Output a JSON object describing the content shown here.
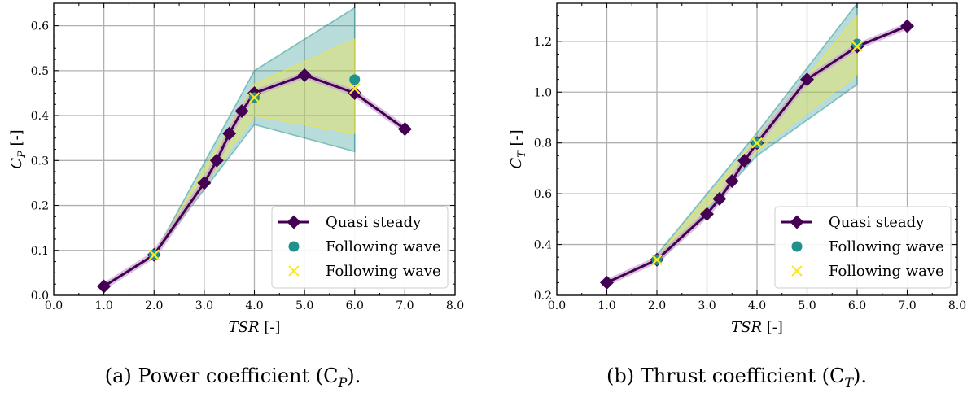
{
  "chart_data": [
    {
      "type": "line",
      "caption": "(a) Power coefficient (C",
      "caption_sub": "P",
      "caption_end": ").",
      "xlabel": "TSR",
      "xlabel_unit": "[-]",
      "ylabel": "C",
      "ylabel_sub": "P",
      "ylabel_unit": "[-]",
      "xlim": [
        0,
        8
      ],
      "ylim": [
        0,
        0.65
      ],
      "xticks": [
        0,
        1,
        2,
        3,
        4,
        5,
        6,
        7,
        8
      ],
      "xtick_labels": [
        "0.0",
        "1.0",
        "2.0",
        "3.0",
        "4.0",
        "5.0",
        "6.0",
        "7.0",
        "8.0"
      ],
      "yticks": [
        0,
        0.1,
        0.2,
        0.3,
        0.4,
        0.5,
        0.6
      ],
      "ytick_labels": [
        "0.0",
        "0.1",
        "0.2",
        "0.3",
        "0.4",
        "0.5",
        "0.6"
      ],
      "grid": true,
      "legend_position": "lower-right",
      "series": [
        {
          "name": "Quasi steady",
          "kind": "line-marker",
          "color": "#440154",
          "x": [
            1.0,
            2.0,
            3.0,
            3.25,
            3.5,
            3.75,
            4.0,
            5.0,
            6.0,
            7.0
          ],
          "y": [
            0.02,
            0.09,
            0.25,
            0.3,
            0.36,
            0.41,
            0.45,
            0.49,
            0.45,
            0.37
          ]
        },
        {
          "name": "Following wave",
          "kind": "circle",
          "color": "#21918c",
          "x": [
            2.0,
            4.0,
            6.0
          ],
          "y": [
            0.09,
            0.44,
            0.48
          ]
        },
        {
          "name": "Following wave",
          "kind": "cross",
          "color": "#fde725",
          "x": [
            2.0,
            4.0,
            6.0
          ],
          "y": [
            0.09,
            0.44,
            0.46
          ]
        }
      ],
      "bands": [
        {
          "color": "#21918c",
          "x": [
            2.0,
            4.0,
            6.0
          ],
          "lower": [
            0.09,
            0.38,
            0.32
          ],
          "upper": [
            0.09,
            0.5,
            0.64
          ]
        },
        {
          "color": "#fde725",
          "x": [
            2.0,
            4.0,
            6.0
          ],
          "lower": [
            0.09,
            0.4,
            0.36
          ],
          "upper": [
            0.09,
            0.47,
            0.57
          ]
        }
      ]
    },
    {
      "type": "line",
      "caption": "(b) Thrust coefficient (C",
      "caption_sub": "T",
      "caption_end": ").",
      "xlabel": "TSR",
      "xlabel_unit": "[-]",
      "ylabel": "C",
      "ylabel_sub": "T",
      "ylabel_unit": "[-]",
      "xlim": [
        0,
        8
      ],
      "ylim": [
        0.2,
        1.35
      ],
      "xticks": [
        0,
        1,
        2,
        3,
        4,
        5,
        6,
        7,
        8
      ],
      "xtick_labels": [
        "0.0",
        "1.0",
        "2.0",
        "3.0",
        "4.0",
        "5.0",
        "6.0",
        "7.0",
        "8.0"
      ],
      "yticks": [
        0.2,
        0.4,
        0.6,
        0.8,
        1.0,
        1.2
      ],
      "ytick_labels": [
        "0.2",
        "0.4",
        "0.6",
        "0.8",
        "1.0",
        "1.2"
      ],
      "grid": true,
      "legend_position": "lower-right",
      "series": [
        {
          "name": "Quasi steady",
          "kind": "line-marker",
          "color": "#440154",
          "x": [
            1.0,
            2.0,
            3.0,
            3.25,
            3.5,
            3.75,
            4.0,
            5.0,
            6.0,
            7.0
          ],
          "y": [
            0.25,
            0.34,
            0.52,
            0.58,
            0.65,
            0.73,
            0.8,
            1.05,
            1.18,
            1.26
          ]
        },
        {
          "name": "Following wave",
          "kind": "circle",
          "color": "#21918c",
          "x": [
            2.0,
            4.0,
            6.0
          ],
          "y": [
            0.34,
            0.8,
            1.19
          ]
        },
        {
          "name": "Following wave",
          "kind": "cross",
          "color": "#fde725",
          "x": [
            2.0,
            4.0,
            6.0
          ],
          "y": [
            0.34,
            0.8,
            1.18
          ]
        }
      ],
      "bands": [
        {
          "color": "#21918c",
          "x": [
            2.0,
            4.0,
            6.0
          ],
          "lower": [
            0.32,
            0.75,
            1.03
          ],
          "upper": [
            0.36,
            0.84,
            1.35
          ]
        },
        {
          "color": "#fde725",
          "x": [
            2.0,
            4.0,
            6.0
          ],
          "lower": [
            0.33,
            0.77,
            1.07
          ],
          "upper": [
            0.35,
            0.82,
            1.3
          ]
        }
      ]
    }
  ]
}
